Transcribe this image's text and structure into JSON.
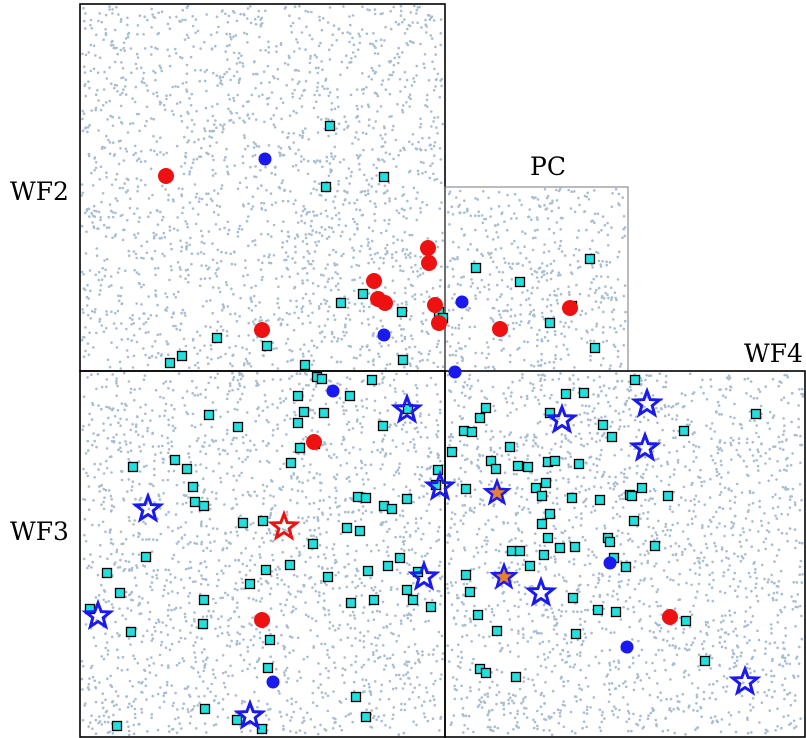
{
  "chips": [
    {
      "label": "WF2"
    },
    {
      "label": "PC"
    },
    {
      "label": "WF3"
    },
    {
      "label": "WF4"
    }
  ],
  "colors": {
    "background_dots": "#a9bdd0",
    "frame": "#000000",
    "pc_frame": "#777777",
    "square_fill": "#22e0dd",
    "red_dot": "#ee1111",
    "blue_dot": "#1a1aee",
    "blue_star": "#1a1aee",
    "red_star": "#ee1111",
    "orange_star_fill": "#e8822a"
  },
  "marker_types": [
    "cyan-square",
    "red-dot",
    "blue-dot",
    "blue-open-star",
    "red-open-star",
    "orange-filled-star"
  ]
}
